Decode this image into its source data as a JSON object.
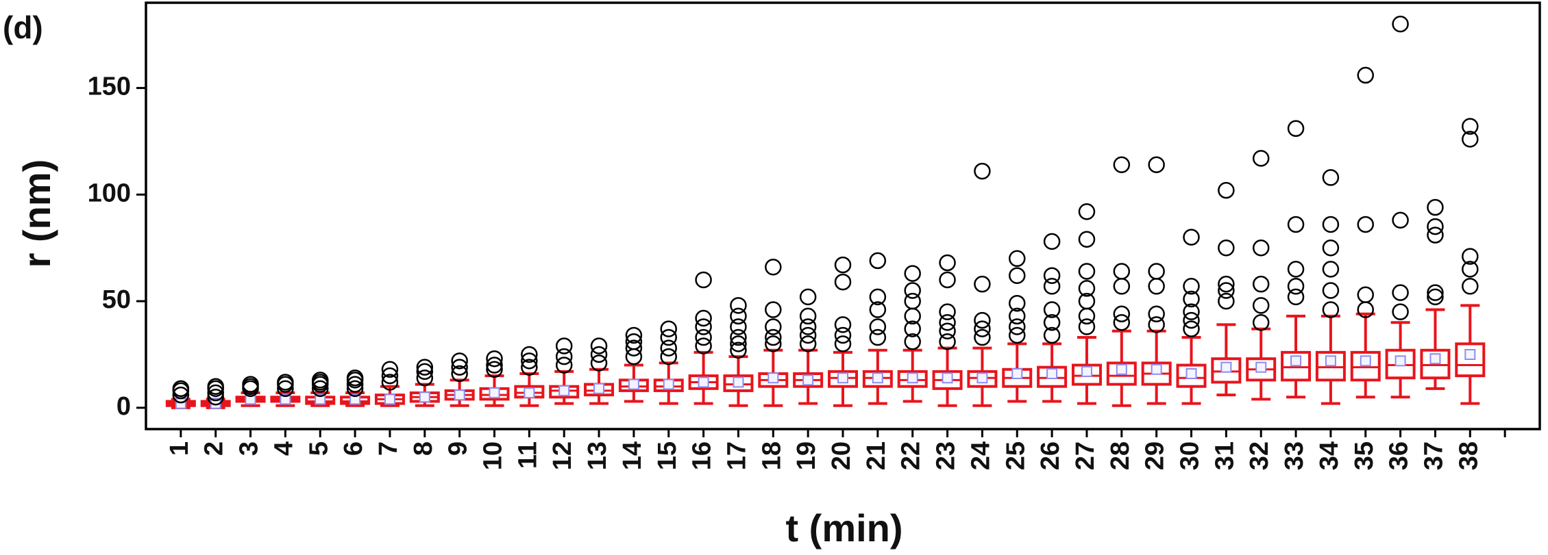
{
  "chart_data": {
    "type": "box",
    "panel_label": "(d)",
    "xlabel": "t (min)",
    "ylabel": "r (nm)",
    "categories": [
      "1",
      "2",
      "3",
      "4",
      "5",
      "6",
      "7",
      "8",
      "9",
      "10",
      "11",
      "12",
      "13",
      "14",
      "15",
      "16",
      "17",
      "18",
      "19",
      "20",
      "21",
      "22",
      "23",
      "24",
      "25",
      "26",
      "27",
      "28",
      "29",
      "30",
      "31",
      "32",
      "33",
      "34",
      "35",
      "36",
      "37",
      "38"
    ],
    "ylim": [
      -10,
      190
    ],
    "yticks": [
      0,
      50,
      100,
      150
    ],
    "box_color": "#e8141c",
    "mean_color": "#8c8cf0",
    "outlier_color": "#000000",
    "boxes": [
      {
        "lower": 0,
        "q1": 1,
        "median": 2,
        "q3": 3,
        "upper": 4,
        "mean": 2,
        "outliers": [
          6,
          8,
          9
        ]
      },
      {
        "lower": 0,
        "q1": 1,
        "median": 2,
        "q3": 3,
        "upper": 4,
        "mean": 2,
        "outliers": [
          5,
          7,
          9,
          10
        ]
      },
      {
        "lower": 1,
        "q1": 3,
        "median": 4,
        "q3": 5,
        "upper": 7,
        "mean": 4,
        "outliers": [
          9,
          10,
          11
        ]
      },
      {
        "lower": 1,
        "q1": 3,
        "median": 4,
        "q3": 5,
        "upper": 7,
        "mean": 4,
        "outliers": [
          9,
          11,
          12
        ]
      },
      {
        "lower": 1,
        "q1": 2,
        "median": 3,
        "q3": 5,
        "upper": 7,
        "mean": 4,
        "outliers": [
          9,
          11,
          12,
          13
        ]
      },
      {
        "lower": 1,
        "q1": 2,
        "median": 3,
        "q3": 5,
        "upper": 7,
        "mean": 4,
        "outliers": [
          9,
          11,
          13,
          14
        ]
      },
      {
        "lower": 1,
        "q1": 2,
        "median": 4,
        "q3": 6,
        "upper": 10,
        "mean": 4,
        "outliers": [
          12,
          15,
          18
        ]
      },
      {
        "lower": 1,
        "q1": 3,
        "median": 5,
        "q3": 7,
        "upper": 11,
        "mean": 5,
        "outliers": [
          14,
          17,
          19
        ]
      },
      {
        "lower": 1,
        "q1": 4,
        "median": 6,
        "q3": 8,
        "upper": 13,
        "mean": 6,
        "outliers": [
          16,
          19,
          22
        ]
      },
      {
        "lower": 1,
        "q1": 4,
        "median": 6,
        "q3": 9,
        "upper": 15,
        "mean": 7,
        "outliers": [
          18,
          20,
          23
        ]
      },
      {
        "lower": 1,
        "q1": 5,
        "median": 7,
        "q3": 10,
        "upper": 16,
        "mean": 7,
        "outliers": [
          19,
          22,
          25
        ]
      },
      {
        "lower": 2,
        "q1": 5,
        "median": 8,
        "q3": 10,
        "upper": 17,
        "mean": 8,
        "outliers": [
          20,
          24,
          29
        ]
      },
      {
        "lower": 2,
        "q1": 6,
        "median": 8,
        "q3": 11,
        "upper": 18,
        "mean": 9,
        "outliers": [
          21,
          25,
          29
        ]
      },
      {
        "lower": 3,
        "q1": 8,
        "median": 10,
        "q3": 13,
        "upper": 20,
        "mean": 11,
        "outliers": [
          24,
          28,
          31,
          34
        ]
      },
      {
        "lower": 2,
        "q1": 8,
        "median": 10,
        "q3": 13,
        "upper": 21,
        "mean": 11,
        "outliers": [
          24,
          28,
          33,
          37
        ]
      },
      {
        "lower": 2,
        "q1": 9,
        "median": 12,
        "q3": 15,
        "upper": 26,
        "mean": 12,
        "outliers": [
          29,
          33,
          38,
          42,
          60
        ]
      },
      {
        "lower": 1,
        "q1": 8,
        "median": 11,
        "q3": 15,
        "upper": 24,
        "mean": 12,
        "outliers": [
          27,
          30,
          33,
          38,
          43,
          48
        ]
      },
      {
        "lower": 1,
        "q1": 10,
        "median": 13,
        "q3": 16,
        "upper": 27,
        "mean": 14,
        "outliers": [
          30,
          33,
          38,
          46,
          66
        ]
      },
      {
        "lower": 2,
        "q1": 10,
        "median": 13,
        "q3": 16,
        "upper": 27,
        "mean": 13,
        "outliers": [
          30,
          34,
          38,
          43,
          52
        ]
      },
      {
        "lower": 1,
        "q1": 10,
        "median": 14,
        "q3": 17,
        "upper": 26,
        "mean": 14,
        "outliers": [
          30,
          34,
          39,
          59,
          67
        ]
      },
      {
        "lower": 2,
        "q1": 10,
        "median": 14,
        "q3": 17,
        "upper": 27,
        "mean": 14,
        "outliers": [
          33,
          38,
          46,
          52,
          69
        ]
      },
      {
        "lower": 3,
        "q1": 10,
        "median": 13,
        "q3": 17,
        "upper": 27,
        "mean": 14,
        "outliers": [
          31,
          37,
          43,
          50,
          55,
          63
        ]
      },
      {
        "lower": 1,
        "q1": 9,
        "median": 13,
        "q3": 17,
        "upper": 28,
        "mean": 14,
        "outliers": [
          31,
          36,
          40,
          45,
          60,
          68
        ]
      },
      {
        "lower": 1,
        "q1": 10,
        "median": 14,
        "q3": 17,
        "upper": 28,
        "mean": 14,
        "outliers": [
          33,
          37,
          41,
          58,
          111
        ]
      },
      {
        "lower": 3,
        "q1": 10,
        "median": 14,
        "q3": 18,
        "upper": 30,
        "mean": 16,
        "outliers": [
          34,
          38,
          43,
          49,
          62,
          70
        ]
      },
      {
        "lower": 3,
        "q1": 10,
        "median": 14,
        "q3": 19,
        "upper": 30,
        "mean": 16,
        "outliers": [
          34,
          40,
          46,
          57,
          62,
          78
        ]
      },
      {
        "lower": 2,
        "q1": 11,
        "median": 15,
        "q3": 20,
        "upper": 33,
        "mean": 17,
        "outliers": [
          38,
          43,
          50,
          56,
          64,
          79,
          92
        ]
      },
      {
        "lower": 1,
        "q1": 11,
        "median": 15,
        "q3": 21,
        "upper": 36,
        "mean": 18,
        "outliers": [
          40,
          44,
          57,
          64,
          114
        ]
      },
      {
        "lower": 2,
        "q1": 11,
        "median": 16,
        "q3": 21,
        "upper": 36,
        "mean": 18,
        "outliers": [
          39,
          44,
          57,
          64,
          114
        ]
      },
      {
        "lower": 2,
        "q1": 10,
        "median": 14,
        "q3": 20,
        "upper": 33,
        "mean": 16,
        "outliers": [
          37,
          41,
          45,
          51,
          57,
          80
        ]
      },
      {
        "lower": 6,
        "q1": 12,
        "median": 17,
        "q3": 23,
        "upper": 39,
        "mean": 19,
        "outliers": [
          50,
          55,
          58,
          75,
          102
        ]
      },
      {
        "lower": 4,
        "q1": 13,
        "median": 18,
        "q3": 23,
        "upper": 37,
        "mean": 19,
        "outliers": [
          40,
          48,
          58,
          75,
          117
        ]
      },
      {
        "lower": 5,
        "q1": 13,
        "median": 19,
        "q3": 26,
        "upper": 43,
        "mean": 22,
        "outliers": [
          52,
          57,
          65,
          86,
          131
        ]
      },
      {
        "lower": 2,
        "q1": 13,
        "median": 19,
        "q3": 26,
        "upper": 43,
        "mean": 22,
        "outliers": [
          46,
          55,
          65,
          75,
          86,
          108
        ]
      },
      {
        "lower": 5,
        "q1": 13,
        "median": 19,
        "q3": 26,
        "upper": 44,
        "mean": 22,
        "outliers": [
          46,
          53,
          86,
          156
        ]
      },
      {
        "lower": 5,
        "q1": 14,
        "median": 20,
        "q3": 27,
        "upper": 40,
        "mean": 22,
        "outliers": [
          45,
          54,
          88,
          180
        ]
      },
      {
        "lower": 9,
        "q1": 14,
        "median": 20,
        "q3": 27,
        "upper": 46,
        "mean": 23,
        "outliers": [
          52,
          54,
          81,
          85,
          94
        ]
      },
      {
        "lower": 2,
        "q1": 15,
        "median": 20,
        "q3": 30,
        "upper": 48,
        "mean": 25,
        "outliers": [
          57,
          65,
          71,
          126,
          132
        ]
      }
    ]
  }
}
